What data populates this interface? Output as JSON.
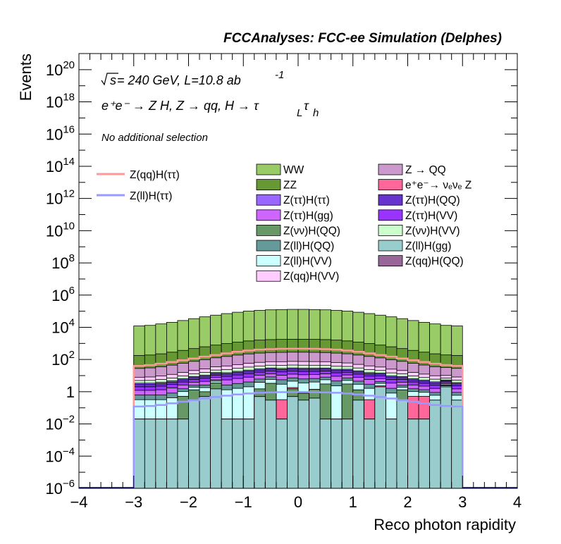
{
  "title": "FCCAnalyses: FCC-ee Simulation (Delphes)",
  "annotations": {
    "energy_prefix": "s",
    "energy_text": " = 240 GeV, L=10.8 ab",
    "energy_exp": "-1",
    "process": "e⁺e⁻ → Z H, Z  → qq, H  → τ",
    "process_sub1": "L",
    "process_tau": "τ",
    "process_sub2": "h",
    "selection": "No additional selection"
  },
  "chart_data": {
    "type": "histogram",
    "xlabel": "Reco photon rapidity",
    "ylabel": "Events",
    "xlim": [
      -4,
      4
    ],
    "ylim": [
      1e-06,
      1e+21
    ],
    "log_y": true,
    "x_ticks": [
      "−4",
      "−3",
      "−2",
      "−1",
      "0",
      "1",
      "2",
      "3",
      "4"
    ],
    "y_ticks": [
      {
        "base": "10",
        "exp": "−6"
      },
      {
        "base": "10",
        "exp": "−4"
      },
      {
        "base": "10",
        "exp": "−2"
      },
      {
        "base": "1",
        "exp": ""
      },
      {
        "base": "10",
        "exp": "2"
      },
      {
        "base": "10",
        "exp": "4"
      },
      {
        "base": "10",
        "exp": "6"
      },
      {
        "base": "10",
        "exp": "8"
      },
      {
        "base": "10",
        "exp": "10"
      },
      {
        "base": "10",
        "exp": "12"
      },
      {
        "base": "10",
        "exp": "14"
      },
      {
        "base": "10",
        "exp": "16"
      },
      {
        "base": "10",
        "exp": "18"
      },
      {
        "base": "10",
        "exp": "20"
      }
    ],
    "bin_edges": [
      -3.0,
      -2.8,
      -2.6,
      -2.4,
      -2.2,
      -2.0,
      -1.8,
      -1.6,
      -1.4,
      -1.2,
      -1.0,
      -0.8,
      -0.6,
      -0.4,
      -0.2,
      0.0,
      0.2,
      0.4,
      0.6,
      0.8,
      1.0,
      1.2,
      1.4,
      1.6,
      1.8,
      2.0,
      2.2,
      2.4,
      2.6,
      2.8,
      3.0
    ],
    "stack": [
      {
        "name": "Z(ll)H(gg)",
        "color": "#99CCCC",
        "values": [
          0.02,
          0.02,
          0.02,
          0.02,
          0.02,
          0.3,
          0.5,
          1.5,
          0.02,
          0.02,
          0.02,
          0.5,
          0.3,
          0.02,
          0.5,
          0.3,
          0.4,
          0.02,
          0.02,
          0.02,
          0.3,
          0.02,
          2,
          0.02,
          0.3,
          0.02,
          0.02,
          0.3,
          2,
          0.3
        ]
      },
      {
        "name": "Z(qq)H(QQ)",
        "color": "#996699",
        "values": [
          0,
          0,
          0.0001,
          0,
          0,
          0,
          0,
          0,
          0,
          0,
          0,
          0,
          0,
          0,
          0,
          0,
          0,
          0,
          0,
          0,
          0,
          0,
          0,
          0,
          0,
          0,
          0,
          0,
          0,
          0
        ]
      },
      {
        "name": "Z(νν)H(QQ)",
        "color": "#669966",
        "values": [
          0,
          0,
          0,
          0,
          0.5,
          1,
          0.5,
          2,
          0,
          0,
          0,
          1,
          3,
          0,
          1,
          0.5,
          1,
          3,
          0,
          3,
          1,
          0,
          0.01,
          0,
          1,
          0,
          0,
          0,
          0,
          0
        ]
      },
      {
        "name": "e⁺e⁻→ νₑνₑ Z",
        "color": "#FF6699",
        "values": [
          0,
          0,
          0,
          0,
          0,
          0,
          0,
          0,
          0,
          0,
          0,
          0,
          0,
          0.3,
          0.3,
          0,
          0,
          0,
          0,
          0,
          0,
          0.3,
          0.3,
          0,
          0,
          0.5,
          0.5,
          0,
          0,
          0
        ]
      },
      {
        "name": "Z(ll)H(VV)",
        "color": "#CCFFFF",
        "values": [
          0.3,
          0.3,
          0.3,
          0.4,
          0.5,
          0.6,
          0.8,
          1,
          1.3,
          1.6,
          2,
          2.3,
          2.5,
          2.6,
          2.7,
          2.7,
          2.6,
          2.5,
          2.3,
          2,
          1.6,
          1.3,
          1,
          0.8,
          0.6,
          0.5,
          0.4,
          0.3,
          0.3,
          0.3
        ]
      },
      {
        "name": "Z(ll)H(QQ)",
        "color": "#669999",
        "values": [
          0.3,
          0.3,
          0.3,
          0.4,
          0.5,
          0.6,
          0.8,
          1,
          1.3,
          1.6,
          2,
          2.3,
          2.5,
          2.6,
          2.7,
          2.7,
          2.6,
          2.5,
          2.3,
          2,
          1.6,
          1.3,
          1,
          0.8,
          0.6,
          0.5,
          0.4,
          0.3,
          0.3,
          0.3
        ]
      },
      {
        "name": "Z(ττ)H(gg)",
        "color": "#CC66FF",
        "values": [
          0.6,
          0.6,
          0.7,
          0.9,
          1.1,
          1.4,
          1.8,
          2.2,
          2.8,
          3.4,
          4,
          4.5,
          4.8,
          5,
          5.1,
          5.1,
          5,
          4.8,
          4.5,
          4,
          3.4,
          2.8,
          2.2,
          1.8,
          1.4,
          1.1,
          0.9,
          0.7,
          0.6,
          0.6
        ]
      },
      {
        "name": "Z(ττ)H(VV)",
        "color": "#9933FF",
        "values": [
          0.8,
          0.8,
          0.9,
          1.1,
          1.4,
          1.8,
          2.3,
          2.9,
          3.6,
          4.4,
          5.2,
          5.8,
          6.2,
          6.5,
          6.6,
          6.6,
          6.5,
          6.2,
          5.8,
          5.2,
          4.4,
          3.6,
          2.9,
          2.3,
          1.8,
          1.4,
          1.1,
          0.9,
          0.8,
          0.8
        ]
      },
      {
        "name": "Z(ττ)H(QQ)",
        "color": "#6633CC",
        "values": [
          0.8,
          0.8,
          0.9,
          1.1,
          1.4,
          1.8,
          2.3,
          2.9,
          3.6,
          4.4,
          5.2,
          5.8,
          6.2,
          6.5,
          6.6,
          6.6,
          6.5,
          6.2,
          5.8,
          5.2,
          4.4,
          3.6,
          2.9,
          2.3,
          1.8,
          1.4,
          1.1,
          0.9,
          0.8,
          0.8
        ]
      },
      {
        "name": "Z(ττ)H(ττ)",
        "color": "#9966FF",
        "values": [
          0.6,
          0.6,
          0.7,
          0.8,
          1.0,
          1.3,
          1.6,
          2.0,
          2.5,
          3.0,
          3.5,
          3.9,
          4.2,
          4.4,
          4.5,
          4.5,
          4.4,
          4.2,
          3.9,
          3.5,
          3.0,
          2.5,
          2.0,
          1.6,
          1.3,
          1.0,
          0.8,
          0.7,
          0.6,
          0.6
        ]
      },
      {
        "name": "Z(νν)H(VV)",
        "color": "#CCFFCC",
        "values": [
          1.5,
          1.6,
          1.9,
          2.4,
          3.1,
          4,
          5.2,
          6.6,
          8.2,
          10,
          12,
          13.5,
          14.5,
          15,
          15.3,
          15.3,
          15,
          14.5,
          13.5,
          12,
          10,
          8.2,
          6.6,
          5.2,
          4,
          3.1,
          2.4,
          1.9,
          1.6,
          1.5
        ]
      },
      {
        "name": "Z(qq)H(VV)",
        "color": "#FFCCFF",
        "values": [
          3,
          3.2,
          3.8,
          4.8,
          6.2,
          8,
          10.4,
          13.2,
          16.4,
          20,
          24,
          27,
          29,
          30,
          30.6,
          30.6,
          30,
          29,
          27,
          24,
          20,
          16.4,
          13.2,
          10.4,
          8,
          6.2,
          4.8,
          3.8,
          3.2,
          3
        ]
      },
      {
        "name": "Z → QQ",
        "color": "#CC99CC",
        "values": [
          20,
          22,
          26,
          33,
          43,
          56,
          72,
          92,
          115,
          140,
          165,
          185,
          198,
          205,
          210,
          210,
          205,
          198,
          185,
          165,
          140,
          115,
          92,
          72,
          56,
          43,
          33,
          26,
          22,
          20
        ]
      },
      {
        "name": "ZZ",
        "color": "#669933",
        "values": [
          150,
          160,
          190,
          240,
          310,
          400,
          520,
          660,
          820,
          1000,
          1200,
          1350,
          1450,
          1500,
          1530,
          1530,
          1500,
          1450,
          1350,
          1200,
          1000,
          820,
          660,
          520,
          400,
          310,
          240,
          190,
          160,
          150
        ]
      },
      {
        "name": "WW",
        "color": "#99CC66",
        "values": [
          12000,
          13000,
          16000,
          20000,
          26000,
          34000,
          44000,
          56000,
          70000,
          85000,
          100000,
          112000,
          120000,
          125000,
          128000,
          128000,
          125000,
          120000,
          112000,
          100000,
          85000,
          70000,
          56000,
          44000,
          34000,
          26000,
          20000,
          16000,
          13000,
          12000
        ]
      }
    ],
    "lines": [
      {
        "name": "Z(qq)H(ττ)",
        "color": "#FF9999",
        "values": [
          40,
          45,
          55,
          70,
          90,
          115,
          150,
          190,
          240,
          300,
          360,
          410,
          440,
          460,
          470,
          470,
          460,
          440,
          410,
          360,
          300,
          240,
          190,
          150,
          115,
          90,
          70,
          55,
          45,
          40
        ]
      },
      {
        "name": "Z(ll)H(ττ)",
        "color": "#9999FF",
        "values": [
          0.12,
          0.13,
          0.15,
          0.19,
          0.24,
          0.3,
          0.38,
          0.47,
          0.57,
          0.68,
          0.78,
          0.86,
          0.91,
          0.94,
          0.95,
          0.95,
          0.94,
          0.91,
          0.86,
          0.78,
          0.68,
          0.57,
          0.47,
          0.38,
          0.3,
          0.24,
          0.19,
          0.15,
          0.13,
          0.12
        ]
      }
    ],
    "legend_lines": [
      "Z(qq)H(ττ)",
      "Z(ll)H(ττ)"
    ],
    "legend_left": [
      "WW",
      "ZZ",
      "Z(ττ)H(ττ)",
      "Z(ττ)H(gg)",
      "Z(νν)H(QQ)",
      "Z(ll)H(QQ)",
      "Z(ll)H(VV)",
      "Z(qq)H(VV)"
    ],
    "legend_right": [
      "Z → QQ",
      "e⁺e⁻→ νₑνₑ Z",
      "Z(ττ)H(QQ)",
      "Z(ττ)H(VV)",
      "Z(νν)H(VV)",
      "Z(ll)H(gg)",
      "Z(qq)H(QQ)"
    ]
  }
}
